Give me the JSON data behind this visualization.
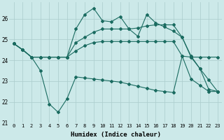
{
  "xlabel": "Humidex (Indice chaleur)",
  "background_color": "#cce9e9",
  "grid_color": "#aacccc",
  "line_color": "#1a6b60",
  "xlim": [
    -0.5,
    23.5
  ],
  "ylim": [
    21.0,
    26.8
  ],
  "x_ticks": [
    0,
    1,
    2,
    3,
    4,
    5,
    6,
    7,
    8,
    9,
    10,
    11,
    12,
    13,
    14,
    15,
    16,
    17,
    18,
    19,
    20,
    21,
    22,
    23
  ],
  "y_ticks": [
    21,
    22,
    23,
    24,
    25,
    26
  ],
  "line_top_x": [
    0,
    1,
    2,
    3,
    4,
    5,
    6,
    7,
    8,
    9,
    10,
    11,
    12,
    13,
    14,
    15,
    16,
    17,
    18,
    19,
    20,
    21,
    22,
    23
  ],
  "line_top_y": [
    24.8,
    24.5,
    24.15,
    24.15,
    24.15,
    24.15,
    24.15,
    25.5,
    26.2,
    26.5,
    25.9,
    25.85,
    26.1,
    25.5,
    25.15,
    26.2,
    25.8,
    25.6,
    25.4,
    25.1,
    24.15,
    23.6,
    23.05,
    22.5
  ],
  "line_mid1_x": [
    0,
    1,
    2,
    3,
    4,
    5,
    6,
    7,
    8,
    9,
    10,
    11,
    12,
    13,
    14,
    15,
    16,
    17,
    18,
    19,
    20,
    21,
    22,
    23
  ],
  "line_mid1_y": [
    24.8,
    24.5,
    24.15,
    24.15,
    24.15,
    24.15,
    24.15,
    24.85,
    25.1,
    25.35,
    25.5,
    25.5,
    25.5,
    25.5,
    25.55,
    25.65,
    25.7,
    25.7,
    25.7,
    25.1,
    24.2,
    23.6,
    22.6,
    22.5
  ],
  "line_mid2_x": [
    0,
    1,
    2,
    3,
    4,
    5,
    6,
    7,
    8,
    9,
    10,
    11,
    12,
    13,
    14,
    15,
    16,
    17,
    18,
    19,
    20,
    21,
    22,
    23
  ],
  "line_mid2_y": [
    24.8,
    24.5,
    24.15,
    24.15,
    24.15,
    24.15,
    24.15,
    24.45,
    24.7,
    24.85,
    24.9,
    24.9,
    24.9,
    24.9,
    24.9,
    24.9,
    24.9,
    24.9,
    24.9,
    24.2,
    24.15,
    24.15,
    24.15,
    24.15
  ],
  "line_bot_x": [
    0,
    1,
    2,
    3,
    4,
    5,
    6,
    7,
    8,
    9,
    10,
    11,
    12,
    13,
    14,
    15,
    16,
    17,
    18,
    19,
    20,
    21,
    22,
    23
  ],
  "line_bot_y": [
    24.8,
    24.5,
    24.15,
    23.5,
    21.9,
    21.5,
    22.15,
    23.2,
    23.15,
    23.1,
    23.05,
    23.0,
    22.95,
    22.85,
    22.75,
    22.65,
    22.55,
    22.5,
    22.45,
    24.2,
    23.1,
    22.8,
    22.5,
    22.5
  ]
}
